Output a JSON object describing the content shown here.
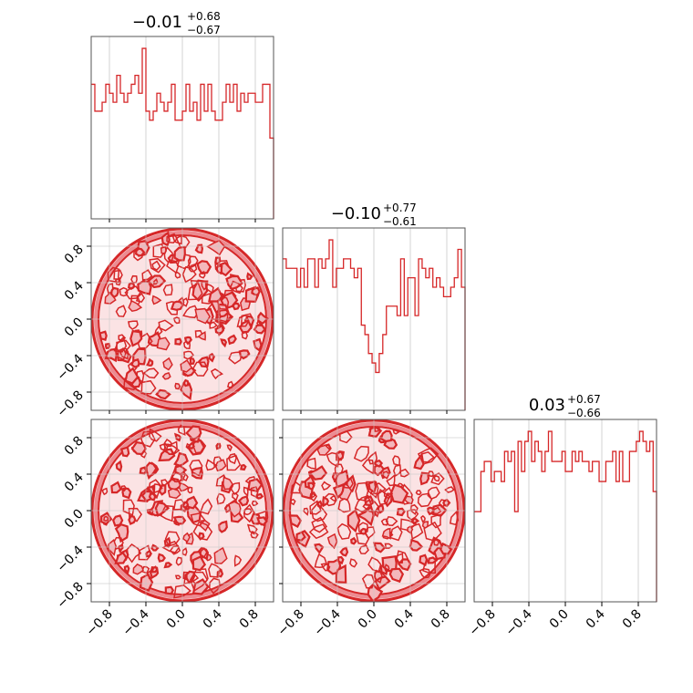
{
  "chart_data": {
    "type": "corner",
    "color": "#d62728",
    "fill_colors": [
      "#fbe3e4",
      "#f4b7bb",
      "#ec8b91"
    ],
    "grid": true,
    "dimensions": 3,
    "axis_range": [
      -1.0,
      1.0
    ],
    "ticks": [
      -0.8,
      -0.4,
      0.0,
      0.4,
      0.8
    ],
    "tick_labels": [
      "−0.8",
      "−0.4",
      "0.0",
      "0.4",
      "0.8"
    ],
    "titles": [
      {
        "median": "−0.01",
        "plus": "+0.68",
        "minus": "−0.67"
      },
      {
        "median": "−0.10",
        "plus": "+0.77",
        "minus": "−0.61"
      },
      {
        "median": "0.03",
        "plus": "+0.67",
        "minus": "−0.66"
      }
    ],
    "histograms": [
      {
        "type": "histogram",
        "bin_range": [
          -1.0,
          1.0
        ],
        "values": [
          15,
          12,
          12,
          13,
          15,
          14,
          13,
          16,
          14,
          13,
          14,
          15,
          16,
          14,
          19,
          12,
          11,
          12,
          14,
          13,
          12,
          13,
          15,
          11,
          11,
          12,
          15,
          12,
          13,
          11,
          15,
          12,
          15,
          12,
          11,
          11,
          13,
          15,
          13,
          15,
          12,
          14,
          13,
          14,
          14,
          13,
          13,
          15,
          15,
          9
        ]
      },
      {
        "type": "histogram",
        "bin_range": [
          -1.0,
          1.0
        ],
        "values": [
          16,
          15,
          15,
          15,
          13,
          15,
          13,
          16,
          16,
          13,
          16,
          15,
          16,
          18,
          13,
          15,
          15,
          16,
          16,
          15,
          14,
          15,
          9,
          8,
          6,
          5,
          4,
          6,
          8,
          11,
          11,
          11,
          10,
          16,
          10,
          14,
          14,
          10,
          16,
          15,
          14,
          15,
          13,
          14,
          13,
          12,
          12,
          13,
          14,
          17,
          13
        ]
      },
      {
        "type": "histogram",
        "bin_range": [
          -1.0,
          1.0
        ],
        "values": [
          9,
          9,
          13,
          14,
          14,
          12,
          13,
          13,
          12,
          15,
          14,
          15,
          9,
          16,
          13,
          16,
          17,
          14,
          16,
          15,
          13,
          15,
          17,
          14,
          14,
          14,
          15,
          13,
          13,
          15,
          14,
          15,
          14,
          14,
          13,
          14,
          14,
          12,
          12,
          14,
          14,
          15,
          12,
          15,
          12,
          12,
          15,
          15,
          16,
          17,
          16,
          15,
          16,
          11
        ]
      }
    ],
    "contours": [
      {
        "x_dim": 0,
        "y_dim": 1,
        "shape": "unit-disk",
        "levels": 3
      },
      {
        "x_dim": 0,
        "y_dim": 2,
        "shape": "unit-disk",
        "levels": 3
      },
      {
        "x_dim": 1,
        "y_dim": 2,
        "shape": "unit-disk",
        "levels": 3
      }
    ]
  }
}
